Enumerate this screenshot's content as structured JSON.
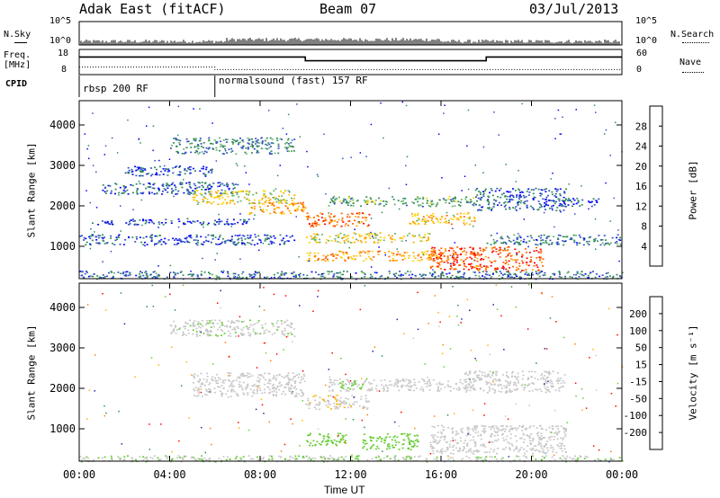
{
  "header": {
    "station": "Adak East (fitACF)",
    "beam": "Beam 07",
    "date": "03/Jul/2013"
  },
  "panels": {
    "nsky": {
      "left_label": "N.Sky",
      "right_label": "N.Search",
      "ticks_left": [
        "10^5",
        "10^0"
      ],
      "ticks_right": [
        "10^5",
        "10^0"
      ]
    },
    "freq": {
      "left_label_1": "Freq.",
      "left_label_2": "[MHz]",
      "right_label": "Nave",
      "ticks_left": [
        "18",
        "8"
      ],
      "ticks_right": [
        "60",
        "0"
      ],
      "freq_steps": [
        {
          "x0": 0,
          "x1": 10,
          "level": 0.7
        },
        {
          "x0": 10,
          "x1": 18,
          "level": 0.55
        },
        {
          "x0": 18,
          "x1": 24,
          "level": 0.7
        }
      ],
      "nave_steps": [
        {
          "x0": 0,
          "x1": 6,
          "level": 0.3
        },
        {
          "x0": 6,
          "x1": 24,
          "level": 0.2
        }
      ]
    },
    "cpid": {
      "label": "CPID",
      "segments": [
        {
          "start_hr": 0,
          "text": "rbsp 200 RF"
        },
        {
          "start_hr": 6,
          "text": "normalsound (fast) 157 RF"
        }
      ]
    },
    "power": {
      "colorbar_label": "Power [dB]",
      "colorbar_ticks": [
        "28",
        "24",
        "20",
        "16",
        "12",
        "8",
        "4"
      ],
      "colors": [
        "#0000ff",
        "#3050c0",
        "#2e8b57",
        "#66b36b",
        "#ffd000",
        "#ffa500",
        "#ff6000",
        "#ff0000"
      ]
    },
    "velocity": {
      "colorbar_label": "Velocity [m s⁻¹]",
      "colorbar_ticks": [
        "200",
        "100",
        "50",
        "15",
        "-15",
        "-50",
        "-100",
        "-200"
      ],
      "colors": [
        "#1a28a8",
        "#2e8b57",
        "#66cc33",
        "#c8c8c8",
        "#ffb000",
        "#ff8000",
        "#ff0000"
      ]
    }
  },
  "chart_data": {
    "type": "heatmap",
    "x_label": "Time UT",
    "y_label": "Slant Range [km]",
    "x_range_hr": [
      0,
      24
    ],
    "y_range_km": [
      200,
      4600
    ],
    "x_ticks": [
      "00:00",
      "04:00",
      "08:00",
      "12:00",
      "16:00",
      "20:00",
      "00:00"
    ],
    "x_tick_hours": [
      0,
      4,
      8,
      12,
      16,
      20,
      24
    ],
    "y_ticks": [
      "4000",
      "3000",
      "2000",
      "1000"
    ],
    "y_tick_values": [
      4000,
      3000,
      2000,
      1000
    ],
    "power_regions": [
      {
        "t0": 0.0,
        "t1": 24.0,
        "r0": 200,
        "r1": 400,
        "p": 8
      },
      {
        "t0": 0.0,
        "t1": 9.5,
        "r0": 1050,
        "r1": 1300,
        "p": 6
      },
      {
        "t0": 0.5,
        "t1": 7.5,
        "r0": 1550,
        "r1": 1700,
        "p": 5
      },
      {
        "t0": 1.0,
        "t1": 7.0,
        "r0": 2300,
        "r1": 2600,
        "p": 7
      },
      {
        "t0": 2.0,
        "t1": 6.0,
        "r0": 2750,
        "r1": 3000,
        "p": 5
      },
      {
        "t0": 4.0,
        "t1": 9.5,
        "r0": 3300,
        "r1": 3700,
        "p": 9
      },
      {
        "t0": 5.0,
        "t1": 9.5,
        "r0": 2050,
        "r1": 2400,
        "p": 18
      },
      {
        "t0": 7.5,
        "t1": 10.0,
        "r0": 1800,
        "r1": 2100,
        "p": 22
      },
      {
        "t0": 10.0,
        "t1": 12.8,
        "r0": 1500,
        "r1": 1850,
        "p": 25
      },
      {
        "t0": 11.0,
        "t1": 17.5,
        "r0": 2000,
        "r1": 2250,
        "p": 12
      },
      {
        "t0": 10.0,
        "t1": 15.5,
        "r0": 1100,
        "r1": 1350,
        "p": 18
      },
      {
        "t0": 10.0,
        "t1": 16.0,
        "r0": 650,
        "r1": 900,
        "p": 22
      },
      {
        "t0": 14.5,
        "t1": 17.5,
        "r0": 1550,
        "r1": 1850,
        "p": 20
      },
      {
        "t0": 15.5,
        "t1": 20.5,
        "r0": 400,
        "r1": 1000,
        "p": 27
      },
      {
        "t0": 18.0,
        "t1": 24.0,
        "r0": 1050,
        "r1": 1300,
        "p": 8
      },
      {
        "t0": 17.5,
        "t1": 21.5,
        "r0": 1900,
        "r1": 2450,
        "p": 7
      },
      {
        "t0": 20.5,
        "t1": 23.0,
        "r0": 2000,
        "r1": 2200,
        "p": 6
      }
    ],
    "velocity_regions": [
      {
        "t0": 0.0,
        "t1": 24.0,
        "r0": 200,
        "r1": 350,
        "v": 10
      },
      {
        "t0": 4.0,
        "t1": 9.5,
        "r0": 3300,
        "r1": 3700,
        "v": 5
      },
      {
        "t0": 5.0,
        "t1": 10.0,
        "r0": 1800,
        "r1": 2400,
        "v": 0
      },
      {
        "t0": 10.0,
        "t1": 12.8,
        "r0": 1500,
        "r1": 1850,
        "v": -5
      },
      {
        "t0": 11.0,
        "t1": 17.5,
        "r0": 1950,
        "r1": 2250,
        "v": 0
      },
      {
        "t0": 12.5,
        "t1": 15.0,
        "r0": 500,
        "r1": 900,
        "v": 60
      },
      {
        "t0": 10.0,
        "t1": 12.0,
        "r0": 600,
        "r1": 900,
        "v": 30
      },
      {
        "t0": 15.5,
        "t1": 21.5,
        "r0": 400,
        "r1": 1100,
        "v": 0
      },
      {
        "t0": 17.0,
        "t1": 21.5,
        "r0": 1900,
        "r1": 2450,
        "v": 0
      },
      {
        "t0": 11.5,
        "t1": 12.5,
        "r0": 2000,
        "r1": 2200,
        "v": 40
      }
    ]
  }
}
